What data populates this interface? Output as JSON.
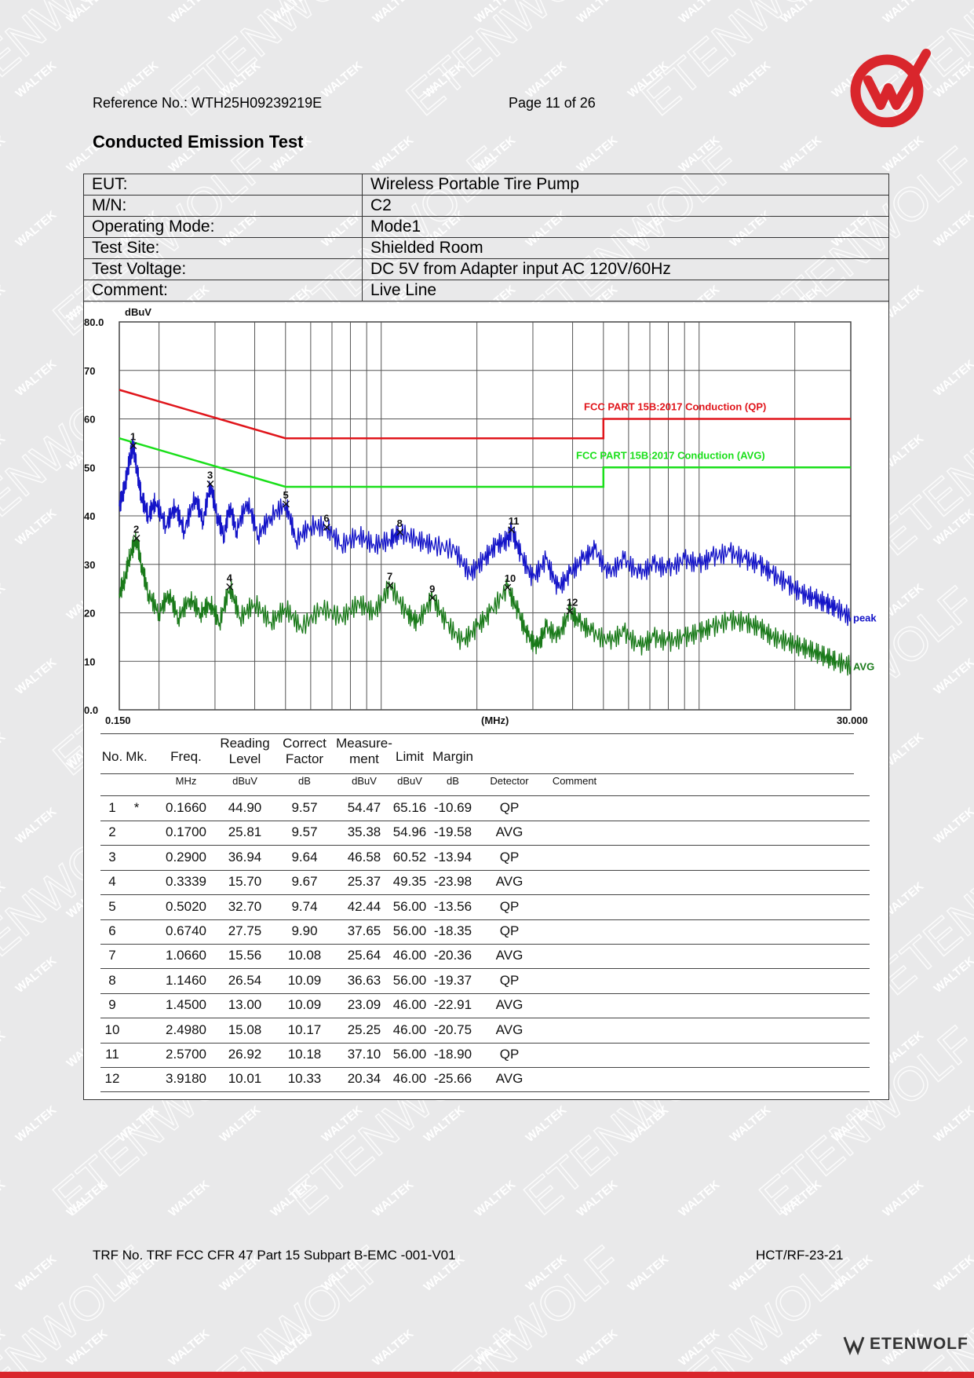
{
  "header": {
    "reference": "Reference No.: WTH25H09239219E",
    "page": "Page 11 of 26"
  },
  "watermark": {
    "primary": "ETENWOLF",
    "secondary": "WALTEK"
  },
  "section_title": "Conducted Emission Test",
  "info_rows": [
    {
      "label": "EUT:",
      "value": "Wireless Portable Tire Pump"
    },
    {
      "label": "M/N:",
      "value": "C2"
    },
    {
      "label": "Operating Mode:",
      "value": "Mode1"
    },
    {
      "label": "Test Site:",
      "value": "Shielded Room"
    },
    {
      "label": "Test Voltage:",
      "value": "DC 5V from Adapter input AC 120V/60Hz"
    },
    {
      "label": "Comment:",
      "value": "Live Line"
    }
  ],
  "chart_data": {
    "type": "line",
    "ylabel": "dBuV",
    "xlabel": "(MHz)",
    "x_scale": "log",
    "xlim": [
      0.15,
      30
    ],
    "ylim": [
      0,
      80
    ],
    "y_tick_labels": [
      "80.0",
      "70",
      "60",
      "50",
      "40",
      "30",
      "20",
      "10",
      "0.0"
    ],
    "x_tick_labels": [
      "0.150",
      "30.000"
    ],
    "grid": true,
    "limits": [
      {
        "name": "FCC PART 15B:2017 Conduction (QP)",
        "color": "#e0151b",
        "points": [
          [
            0.15,
            66
          ],
          [
            0.5,
            56
          ],
          [
            5,
            56
          ],
          [
            5,
            60
          ],
          [
            30,
            60
          ]
        ]
      },
      {
        "name": "FCC PART 15B:2017 Conduction (AVG)",
        "color": "#1adf1a",
        "points": [
          [
            0.15,
            56
          ],
          [
            0.5,
            46
          ],
          [
            5,
            46
          ],
          [
            5,
            50
          ],
          [
            30,
            50
          ]
        ]
      }
    ],
    "series": [
      {
        "name": "peak",
        "color": "#1414c8",
        "points": [
          [
            0.15,
            42
          ],
          [
            0.156,
            46
          ],
          [
            0.162,
            52
          ],
          [
            0.166,
            54.5
          ],
          [
            0.17,
            50
          ],
          [
            0.176,
            44
          ],
          [
            0.185,
            40
          ],
          [
            0.195,
            43
          ],
          [
            0.21,
            38
          ],
          [
            0.225,
            42
          ],
          [
            0.24,
            37
          ],
          [
            0.26,
            44
          ],
          [
            0.275,
            39
          ],
          [
            0.29,
            46.5
          ],
          [
            0.305,
            40
          ],
          [
            0.32,
            36
          ],
          [
            0.334,
            42
          ],
          [
            0.35,
            37
          ],
          [
            0.38,
            43
          ],
          [
            0.41,
            36
          ],
          [
            0.45,
            40
          ],
          [
            0.502,
            42.4
          ],
          [
            0.54,
            35
          ],
          [
            0.6,
            38
          ],
          [
            0.674,
            37.6
          ],
          [
            0.75,
            34
          ],
          [
            0.85,
            36
          ],
          [
            0.95,
            34
          ],
          [
            1.066,
            35
          ],
          [
            1.146,
            36.6
          ],
          [
            1.3,
            35
          ],
          [
            1.45,
            34
          ],
          [
            1.7,
            33
          ],
          [
            1.9,
            28
          ],
          [
            2.1,
            31
          ],
          [
            2.3,
            34
          ],
          [
            2.498,
            35
          ],
          [
            2.57,
            37.1
          ],
          [
            2.75,
            32
          ],
          [
            3.0,
            27
          ],
          [
            3.3,
            31
          ],
          [
            3.6,
            25
          ],
          [
            3.918,
            28
          ],
          [
            4.3,
            31
          ],
          [
            4.7,
            33
          ],
          [
            5.2,
            28
          ],
          [
            5.8,
            31
          ],
          [
            6.5,
            28
          ],
          [
            7.2,
            30
          ],
          [
            8,
            29
          ],
          [
            9,
            31
          ],
          [
            10,
            30
          ],
          [
            11,
            31.5
          ],
          [
            12.5,
            32.5
          ],
          [
            14,
            31
          ],
          [
            15.5,
            30
          ],
          [
            17,
            28
          ],
          [
            19,
            26
          ],
          [
            21,
            24
          ],
          [
            23,
            23
          ],
          [
            25,
            22
          ],
          [
            27,
            21
          ],
          [
            30,
            19
          ]
        ]
      },
      {
        "name": "AVG",
        "color": "#1a7a1a",
        "points": [
          [
            0.15,
            24
          ],
          [
            0.156,
            27
          ],
          [
            0.162,
            32
          ],
          [
            0.17,
            35.4
          ],
          [
            0.176,
            30
          ],
          [
            0.185,
            24
          ],
          [
            0.2,
            20
          ],
          [
            0.215,
            24
          ],
          [
            0.23,
            19
          ],
          [
            0.25,
            23
          ],
          [
            0.27,
            20
          ],
          [
            0.29,
            22
          ],
          [
            0.31,
            18
          ],
          [
            0.334,
            25.4
          ],
          [
            0.36,
            19
          ],
          [
            0.4,
            22
          ],
          [
            0.45,
            18
          ],
          [
            0.5,
            21
          ],
          [
            0.56,
            17
          ],
          [
            0.65,
            21
          ],
          [
            0.75,
            19
          ],
          [
            0.85,
            22
          ],
          [
            0.95,
            20
          ],
          [
            1.066,
            25.6
          ],
          [
            1.2,
            20
          ],
          [
            1.3,
            18
          ],
          [
            1.45,
            23.1
          ],
          [
            1.6,
            18
          ],
          [
            1.8,
            14
          ],
          [
            2.0,
            17
          ],
          [
            2.2,
            20
          ],
          [
            2.498,
            25.2
          ],
          [
            2.7,
            20
          ],
          [
            2.9,
            15
          ],
          [
            3.1,
            13
          ],
          [
            3.3,
            17
          ],
          [
            3.6,
            15
          ],
          [
            3.918,
            20.3
          ],
          [
            4.2,
            18
          ],
          [
            4.6,
            16
          ],
          [
            5.2,
            14
          ],
          [
            5.8,
            16
          ],
          [
            6.5,
            13
          ],
          [
            7.2,
            15
          ],
          [
            8,
            14
          ],
          [
            9,
            15
          ],
          [
            10,
            16
          ],
          [
            11,
            17
          ],
          [
            12.5,
            18.5
          ],
          [
            14,
            18
          ],
          [
            15.5,
            17
          ],
          [
            17,
            15
          ],
          [
            19,
            14
          ],
          [
            21,
            13
          ],
          [
            23,
            12
          ],
          [
            25,
            11
          ],
          [
            27,
            10
          ],
          [
            30,
            9
          ]
        ]
      }
    ],
    "markers": [
      {
        "no": "1",
        "freq": 0.166,
        "level": 54.47
      },
      {
        "no": "2",
        "freq": 0.17,
        "level": 35.38
      },
      {
        "no": "3",
        "freq": 0.29,
        "level": 46.58
      },
      {
        "no": "4",
        "freq": 0.3339,
        "level": 25.37
      },
      {
        "no": "5",
        "freq": 0.502,
        "level": 42.44
      },
      {
        "no": "6",
        "freq": 0.674,
        "level": 37.65
      },
      {
        "no": "7",
        "freq": 1.066,
        "level": 25.64
      },
      {
        "no": "8",
        "freq": 1.146,
        "level": 36.63
      },
      {
        "no": "9",
        "freq": 1.45,
        "level": 23.09
      },
      {
        "no": "10",
        "freq": 2.498,
        "level": 25.25
      },
      {
        "no": "11",
        "freq": 2.57,
        "level": 37.1
      },
      {
        "no": "12",
        "freq": 3.918,
        "level": 20.34
      }
    ]
  },
  "results": {
    "headers": [
      {
        "lines": [
          "No.",
          ""
        ],
        "unit": ""
      },
      {
        "lines": [
          "Mk.",
          ""
        ],
        "unit": ""
      },
      {
        "lines": [
          "Freq.",
          ""
        ],
        "unit": "MHz"
      },
      {
        "lines": [
          "Reading",
          "Level"
        ],
        "unit": "dBuV"
      },
      {
        "lines": [
          "Correct",
          "Factor"
        ],
        "unit": "dB"
      },
      {
        "lines": [
          "Measure-",
          "ment"
        ],
        "unit": "dBuV"
      },
      {
        "lines": [
          "Limit",
          ""
        ],
        "unit": "dBuV"
      },
      {
        "lines": [
          "Margin",
          ""
        ],
        "unit": "dB"
      },
      {
        "lines": [
          "",
          ""
        ],
        "unit": "Detector"
      },
      {
        "lines": [
          "",
          ""
        ],
        "unit": "Comment"
      }
    ],
    "rows": [
      [
        "1",
        "*",
        "0.1660",
        "44.90",
        "9.57",
        "54.47",
        "65.16",
        "-10.69",
        "QP"
      ],
      [
        "2",
        "",
        "0.1700",
        "25.81",
        "9.57",
        "35.38",
        "54.96",
        "-19.58",
        "AVG"
      ],
      [
        "3",
        "",
        "0.2900",
        "36.94",
        "9.64",
        "46.58",
        "60.52",
        "-13.94",
        "QP"
      ],
      [
        "4",
        "",
        "0.3339",
        "15.70",
        "9.67",
        "25.37",
        "49.35",
        "-23.98",
        "AVG"
      ],
      [
        "5",
        "",
        "0.5020",
        "32.70",
        "9.74",
        "42.44",
        "56.00",
        "-13.56",
        "QP"
      ],
      [
        "6",
        "",
        "0.6740",
        "27.75",
        "9.90",
        "37.65",
        "56.00",
        "-18.35",
        "QP"
      ],
      [
        "7",
        "",
        "1.0660",
        "15.56",
        "10.08",
        "25.64",
        "46.00",
        "-20.36",
        "AVG"
      ],
      [
        "8",
        "",
        "1.1460",
        "26.54",
        "10.09",
        "36.63",
        "56.00",
        "-19.37",
        "QP"
      ],
      [
        "9",
        "",
        "1.4500",
        "13.00",
        "10.09",
        "23.09",
        "46.00",
        "-22.91",
        "AVG"
      ],
      [
        "10",
        "",
        "2.4980",
        "15.08",
        "10.17",
        "25.25",
        "46.00",
        "-20.75",
        "AVG"
      ],
      [
        "11",
        "",
        "2.5700",
        "26.92",
        "10.18",
        "37.10",
        "56.00",
        "-18.90",
        "QP"
      ],
      [
        "12",
        "",
        "3.9180",
        "10.01",
        "10.33",
        "20.34",
        "46.00",
        "-25.66",
        "AVG"
      ]
    ]
  },
  "footer": {
    "trf": "TRF No. TRF FCC CFR 47 Part 15 Subpart B-EMC -001-V01",
    "code": "HCT/RF-23-21",
    "brand": "ETENWOLF"
  }
}
